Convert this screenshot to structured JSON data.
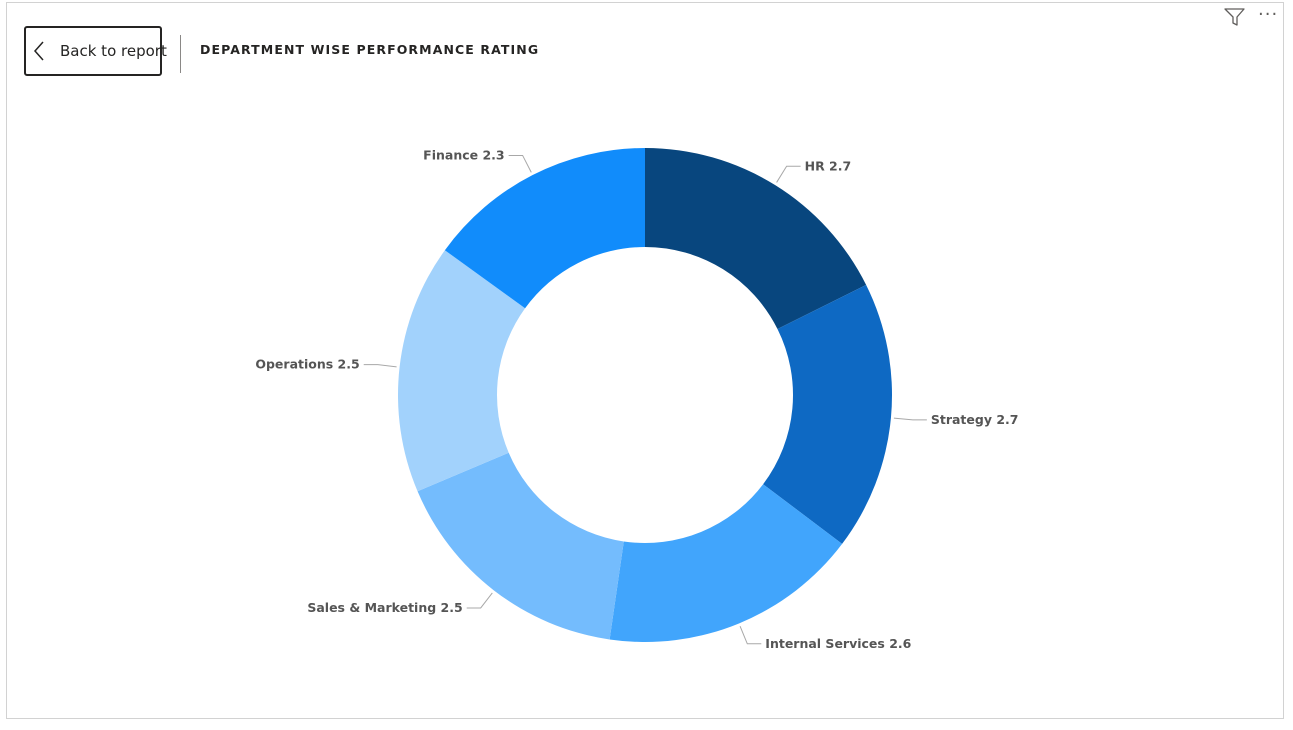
{
  "header": {
    "back_label": "Back to report",
    "title": "DEPARTMENT WISE PERFORMANCE RATING"
  },
  "icons": {
    "back": "chevron-left-icon",
    "filter": "filter-icon",
    "more": "more-options-icon",
    "more_glyph": "···"
  },
  "chart_data": {
    "type": "pie",
    "variant": "donut",
    "title": "DEPARTMENT WISE PERFORMANCE RATING",
    "categories": [
      "HR",
      "Strategy",
      "Internal Services",
      "Sales & Marketing",
      "Operations",
      "Finance"
    ],
    "values": [
      2.7,
      2.7,
      2.6,
      2.5,
      2.5,
      2.3
    ],
    "colors": [
      "#08467e",
      "#0e69c3",
      "#41a5fc",
      "#74bcfd",
      "#a2d2fc",
      "#118cfb"
    ],
    "data_labels": [
      "HR 2.7",
      "Strategy 2.7",
      "Internal Services 2.6",
      "Sales & Marketing 2.5",
      "Operations 2.5",
      "Finance 2.3"
    ],
    "start_angle": "12 o'clock",
    "direction": "clockwise",
    "legend": "none"
  }
}
